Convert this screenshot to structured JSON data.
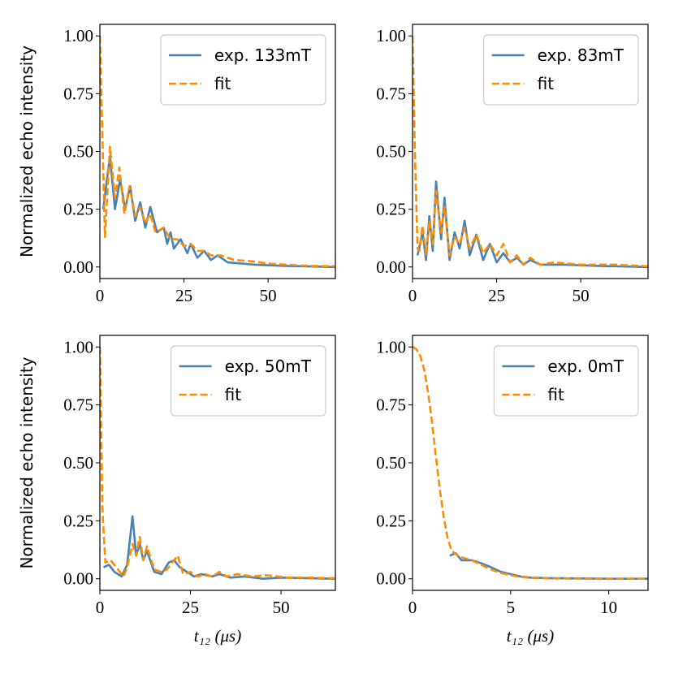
{
  "chart_data": [
    {
      "type": "line",
      "ylabel": "Normalized echo intensity",
      "legend": "upper right",
      "xlim": [
        0,
        70
      ],
      "ylim": [
        -0.05,
        1.05
      ],
      "xticks": [
        0,
        25,
        50
      ],
      "yticks": [
        {
          "value": 0,
          "label": "0.00"
        },
        {
          "value": 0.25,
          "label": "0.25"
        },
        {
          "value": 0.5,
          "label": "0.50"
        },
        {
          "value": 0.75,
          "label": "0.75"
        },
        {
          "value": 1,
          "label": "1.00"
        }
      ],
      "series": [
        {
          "name": "exp. 133mT",
          "color": "#4682b4",
          "x": [
            1,
            3,
            4.5,
            6,
            7.5,
            9,
            10.5,
            12,
            13.5,
            15,
            17,
            19,
            20,
            21,
            22,
            24,
            26,
            27,
            29,
            31,
            33,
            35,
            38,
            42,
            46,
            55,
            70
          ],
          "values": [
            0.25,
            0.48,
            0.25,
            0.38,
            0.25,
            0.35,
            0.2,
            0.28,
            0.17,
            0.26,
            0.15,
            0.17,
            0.1,
            0.15,
            0.08,
            0.12,
            0.06,
            0.1,
            0.04,
            0.07,
            0.03,
            0.05,
            0.02,
            0.015,
            0.01,
            0.005,
            0
          ]
        },
        {
          "name": "fit",
          "color": "#ff8c00",
          "style": "dashed",
          "x": [
            0,
            1.5,
            3,
            4.5,
            5.8,
            7.3,
            8.8,
            10.5,
            12,
            13.5,
            15,
            16.5,
            19,
            21,
            23,
            25,
            27,
            29,
            31,
            33,
            36,
            40,
            45,
            50,
            55,
            62,
            70
          ],
          "values": [
            1,
            0.13,
            0.52,
            0.3,
            0.43,
            0.23,
            0.35,
            0.22,
            0.26,
            0.19,
            0.23,
            0.15,
            0.17,
            0.12,
            0.12,
            0.09,
            0.1,
            0.07,
            0.07,
            0.05,
            0.05,
            0.03,
            0.025,
            0.015,
            0.01,
            0.005,
            0.003
          ]
        }
      ]
    },
    {
      "type": "line",
      "legend": "upper right",
      "xlim": [
        0,
        70
      ],
      "ylim": [
        -0.05,
        1.05
      ],
      "xticks": [
        0,
        25,
        50
      ],
      "yticks": [
        {
          "value": 0,
          "label": "0.00"
        },
        {
          "value": 0.25,
          "label": "0.25"
        },
        {
          "value": 0.5,
          "label": "0.50"
        },
        {
          "value": 0.75,
          "label": "0.75"
        },
        {
          "value": 1,
          "label": "1.00"
        }
      ],
      "series": [
        {
          "name": "exp. 83mT",
          "color": "#4682b4",
          "x": [
            1.5,
            3,
            4,
            5,
            6,
            7,
            8.5,
            9.5,
            11,
            12.5,
            14,
            15.5,
            17,
            19,
            21,
            23,
            25,
            27,
            29,
            31,
            33,
            35,
            38,
            45,
            55,
            70
          ],
          "values": [
            0.05,
            0.15,
            0.03,
            0.22,
            0.07,
            0.37,
            0.12,
            0.3,
            0.03,
            0.15,
            0.08,
            0.2,
            0.05,
            0.14,
            0.03,
            0.1,
            0.02,
            0.06,
            0.02,
            0.04,
            0.01,
            0.03,
            0.01,
            0.01,
            0.005,
            0
          ]
        },
        {
          "name": "fit",
          "color": "#ff8c00",
          "style": "dashed",
          "x": [
            0,
            0.7,
            1.5,
            2,
            3,
            4,
            5,
            6,
            7,
            8.5,
            9.5,
            11,
            12.5,
            14,
            15.5,
            17,
            19,
            21,
            23,
            25,
            27,
            29,
            31,
            33,
            35,
            38,
            42,
            50,
            60,
            70
          ],
          "values": [
            1,
            0.5,
            0.08,
            0.07,
            0.18,
            0.05,
            0.2,
            0.1,
            0.33,
            0.15,
            0.26,
            0.05,
            0.13,
            0.1,
            0.17,
            0.08,
            0.14,
            0.06,
            0.1,
            0.05,
            0.1,
            0.02,
            0.05,
            0.01,
            0.04,
            0.01,
            0.02,
            0.01,
            0.01,
            0.003
          ]
        }
      ]
    },
    {
      "type": "line",
      "ylabel": "Normalized echo intensity",
      "xlabel": "t₁₂ (μs)",
      "legend": "upper right",
      "xlim": [
        0,
        65
      ],
      "ylim": [
        -0.05,
        1.05
      ],
      "xticks": [
        0,
        25,
        50
      ],
      "yticks": [
        {
          "value": 0,
          "label": "0.00"
        },
        {
          "value": 0.25,
          "label": "0.25"
        },
        {
          "value": 0.5,
          "label": "0.50"
        },
        {
          "value": 0.75,
          "label": "0.75"
        },
        {
          "value": 1,
          "label": "1.00"
        }
      ],
      "series": [
        {
          "name": "exp. 50mT",
          "color": "#4682b4",
          "x": [
            1,
            2.5,
            4,
            6,
            7.5,
            9,
            10,
            11,
            12,
            13,
            15,
            17,
            19,
            20.5,
            22,
            24,
            26,
            28,
            31,
            33,
            36,
            40,
            45,
            50,
            65
          ],
          "values": [
            0.05,
            0.06,
            0.03,
            0.01,
            0.06,
            0.27,
            0.1,
            0.15,
            0.08,
            0.12,
            0.03,
            0.02,
            0.07,
            0.08,
            0.05,
            0.03,
            0.01,
            0.02,
            0.01,
            0.02,
            0.005,
            0.01,
            0,
            0.005,
            0
          ]
        },
        {
          "name": "fit",
          "color": "#ff8c00",
          "style": "dashed",
          "x": [
            0,
            0.7,
            1.5,
            3,
            5,
            6.5,
            7.5,
            9,
            10,
            11,
            12,
            13,
            15,
            17,
            18.5,
            20,
            21.5,
            23,
            25,
            27,
            29,
            31,
            33,
            35,
            38,
            42,
            46,
            52,
            58,
            65
          ],
          "values": [
            1,
            0.3,
            0.07,
            0.08,
            0.04,
            0.01,
            0.05,
            0.15,
            0.1,
            0.18,
            0.08,
            0.14,
            0.04,
            0.03,
            0.04,
            0.07,
            0.1,
            0.02,
            0.03,
            0.01,
            0.02,
            0.01,
            0.03,
            0.01,
            0.02,
            0.01,
            0.015,
            0.005,
            0.005,
            0.002
          ]
        }
      ]
    },
    {
      "type": "line",
      "xlabel": "t₁₂ (μs)",
      "legend": "upper right",
      "xlim": [
        0,
        12
      ],
      "ylim": [
        -0.05,
        1.05
      ],
      "xticks": [
        0,
        5,
        10
      ],
      "yticks": [
        {
          "value": 0,
          "label": "0.00"
        },
        {
          "value": 0.25,
          "label": "0.25"
        },
        {
          "value": 0.5,
          "label": "0.50"
        },
        {
          "value": 0.75,
          "label": "0.75"
        },
        {
          "value": 1,
          "label": "1.00"
        }
      ],
      "series": [
        {
          "name": "exp. 0mT",
          "color": "#4682b4",
          "x": [
            1.9,
            2.2,
            2.5,
            3,
            3.4,
            4,
            4.5,
            5,
            5.5,
            6,
            7,
            8,
            10,
            12
          ],
          "values": [
            0.1,
            0.11,
            0.08,
            0.08,
            0.07,
            0.05,
            0.03,
            0.02,
            0.01,
            0.005,
            0.003,
            0.002,
            0,
            0
          ]
        },
        {
          "name": "fit",
          "color": "#ff8c00",
          "style": "dashed",
          "x": [
            0,
            0.2,
            0.4,
            0.6,
            0.8,
            1,
            1.2,
            1.4,
            1.6,
            1.8,
            2,
            2.3,
            2.6,
            3,
            3.5,
            4,
            4.5,
            5,
            5.5,
            6,
            7,
            8,
            10,
            12
          ],
          "values": [
            1,
            0.99,
            0.96,
            0.9,
            0.8,
            0.67,
            0.52,
            0.38,
            0.26,
            0.17,
            0.12,
            0.1,
            0.09,
            0.08,
            0.06,
            0.04,
            0.025,
            0.015,
            0.008,
            0.004,
            0.002,
            0.001,
            0,
            0
          ]
        }
      ]
    }
  ]
}
